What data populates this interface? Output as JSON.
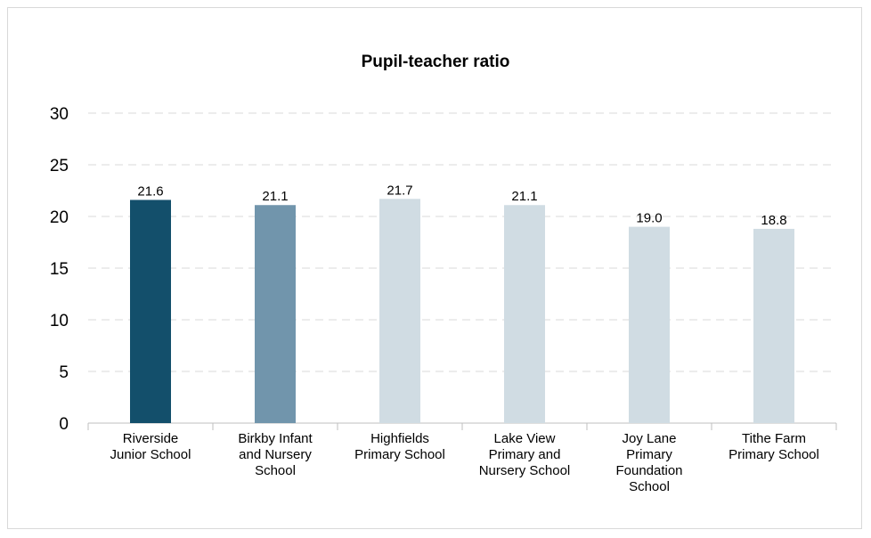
{
  "chart_data": {
    "type": "bar",
    "title": "Pupil-teacher ratio",
    "xlabel": "",
    "ylabel": "",
    "ylim": [
      0,
      30
    ],
    "yticks": [
      0,
      5,
      10,
      15,
      20,
      25,
      30
    ],
    "grid": true,
    "legend": "none",
    "categories": [
      "Riverside Junior School",
      "Birkby Infant and Nursery School",
      "Highfields Primary School",
      "Lake View Primary and Nursery School",
      "Joy Lane Primary Foundation School",
      "Tithe Farm Primary School"
    ],
    "category_lines": [
      [
        "Riverside",
        "Junior School"
      ],
      [
        "Birkby Infant",
        "and Nursery",
        "School"
      ],
      [
        "Highfields",
        "Primary School"
      ],
      [
        "Lake View",
        "Primary and",
        "Nursery School"
      ],
      [
        "Joy Lane",
        "Primary",
        "Foundation",
        "School"
      ],
      [
        "Tithe Farm",
        "Primary School"
      ]
    ],
    "values": [
      21.6,
      21.1,
      21.7,
      21.1,
      19.0,
      18.8
    ],
    "value_labels": [
      "21.6",
      "21.1",
      "21.7",
      "21.1",
      "19.0",
      "18.8"
    ],
    "colors": [
      "#134f6b",
      "#7195ac",
      "#d0dce3",
      "#d0dce3",
      "#d0dce3",
      "#d0dce3"
    ],
    "grid_color": "#d9d9d9",
    "axis_color": "#bfbfbf"
  }
}
